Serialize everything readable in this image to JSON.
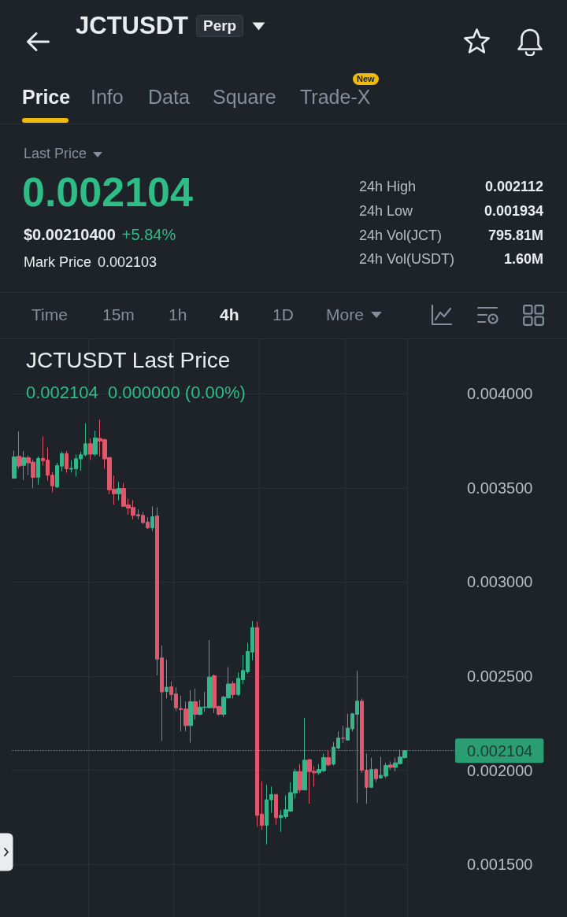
{
  "chart_data": {
    "type": "candlestick",
    "title": "JCTUSDT Last Price",
    "subtitle": "0.002104  0.000000 (0.00%)",
    "annotations": [
      "JCTUSDT",
      "Perp",
      "Price",
      "Info",
      "Data",
      "Square",
      "Trade-X",
      "New",
      "Last Price",
      "0.002104",
      "$0.00210400",
      "+5.84%",
      "Mark Price",
      "0.002103",
      "24h High",
      "0.002112",
      "24h Low",
      "0.001934",
      "24h Vol(JCT)",
      "795.81M",
      "24h Vol(USDT)",
      "1.60M",
      "Time",
      "15m",
      "1h",
      "4h",
      "1D",
      "More"
    ],
    "categories": [
      null,
      null,
      null,
      null,
      null,
      null,
      null,
      null,
      null,
      null,
      null,
      null,
      null,
      null,
      null,
      null,
      null,
      null,
      null,
      null,
      null,
      null,
      null,
      null,
      null,
      null,
      null,
      null,
      null,
      null,
      null,
      null,
      null,
      null,
      null,
      null,
      null,
      null,
      null,
      null,
      null,
      null,
      null,
      null,
      null,
      null,
      null,
      null,
      null,
      null,
      null,
      null,
      null,
      null,
      null,
      null,
      null,
      null,
      null,
      null,
      null,
      null,
      null,
      null,
      null,
      null,
      null,
      null,
      null,
      null,
      null,
      null,
      null,
      null,
      null,
      null,
      null,
      null,
      null,
      null,
      null,
      null,
      null
    ],
    "ohlc": [
      [
        0.003552,
        0.003698,
        0.003548,
        0.003665
      ],
      [
        0.003668,
        0.0038,
        0.003602,
        0.003616
      ],
      [
        0.00362,
        0.003696,
        0.003542,
        0.003661
      ],
      [
        0.003661,
        0.003672,
        0.003567,
        0.003633
      ],
      [
        0.003637,
        0.003651,
        0.0035,
        0.003556
      ],
      [
        0.003557,
        0.003668,
        0.003518,
        0.003657
      ],
      [
        0.003657,
        0.003774,
        0.003619,
        0.003645
      ],
      [
        0.003648,
        0.003714,
        0.003539,
        0.003567
      ],
      [
        0.003567,
        0.003585,
        0.003477,
        0.003511
      ],
      [
        0.003505,
        0.003633,
        0.0035,
        0.003619
      ],
      [
        0.003616,
        0.003693,
        0.003588,
        0.003682
      ],
      [
        0.003682,
        0.003696,
        0.003581,
        0.003602
      ],
      [
        0.0036,
        0.003648,
        0.003581,
        0.003604
      ],
      [
        0.003602,
        0.003676,
        0.00356,
        0.003655
      ],
      [
        0.003654,
        0.003693,
        0.003591,
        0.003676
      ],
      [
        0.003676,
        0.003844,
        0.003668,
        0.003735
      ],
      [
        0.003735,
        0.003763,
        0.003648,
        0.003679
      ],
      [
        0.003679,
        0.003804,
        0.003668,
        0.003766
      ],
      [
        0.003763,
        0.003863,
        0.003668,
        0.003749
      ],
      [
        0.003756,
        0.003763,
        0.003602,
        0.003654
      ],
      [
        0.003662,
        0.003662,
        0.003467,
        0.00349
      ],
      [
        0.003493,
        0.003565,
        0.003411,
        0.003469
      ],
      [
        0.003469,
        0.003532,
        0.003435,
        0.003497
      ],
      [
        0.003497,
        0.003526,
        0.003402,
        0.003402
      ],
      [
        0.00341,
        0.003444,
        0.003358,
        0.003393
      ],
      [
        0.003396,
        0.003435,
        0.003333,
        0.003354
      ],
      [
        0.003358,
        0.003386,
        0.003333,
        0.003351
      ],
      [
        0.003354,
        0.003372,
        0.003309,
        0.003316
      ],
      [
        0.003319,
        0.003344,
        0.003281,
        0.003288
      ],
      [
        0.003288,
        0.003402,
        0.003271,
        0.003347
      ],
      [
        0.003351,
        0.003397,
        0.002504,
        0.00259
      ],
      [
        0.002597,
        0.002663,
        0.002155,
        0.002416
      ],
      [
        0.002418,
        0.002588,
        0.002381,
        0.002441
      ],
      [
        0.002443,
        0.002472,
        0.00237,
        0.002402
      ],
      [
        0.002405,
        0.002441,
        0.002314,
        0.002332
      ],
      [
        0.002328,
        0.002397,
        0.002206,
        0.002322
      ],
      [
        0.002325,
        0.002364,
        0.002206,
        0.002237
      ],
      [
        0.002237,
        0.002425,
        0.002146,
        0.002364
      ],
      [
        0.002364,
        0.002434,
        0.002269,
        0.002297
      ],
      [
        0.002297,
        0.002374,
        0.00229,
        0.002335
      ],
      [
        0.002333,
        0.002416,
        0.002311,
        0.002336
      ],
      [
        0.002332,
        0.002692,
        0.002328,
        0.002495
      ],
      [
        0.002502,
        0.002509,
        0.002304,
        0.002332
      ],
      [
        0.002339,
        0.002342,
        0.00229,
        0.002297
      ],
      [
        0.002297,
        0.002395,
        0.002283,
        0.002388
      ],
      [
        0.002385,
        0.002548,
        0.002381,
        0.002458
      ],
      [
        0.00246,
        0.002474,
        0.002381,
        0.002402
      ],
      [
        0.002402,
        0.00252,
        0.002395,
        0.002488
      ],
      [
        0.002481,
        0.002614,
        0.002458,
        0.00253
      ],
      [
        0.002523,
        0.002677,
        0.002513,
        0.002632
      ],
      [
        0.002628,
        0.002793,
        0.002583,
        0.002758
      ],
      [
        0.002758,
        0.002789,
        0.0017,
        0.00176
      ],
      [
        0.001767,
        0.001941,
        0.001683,
        0.001707
      ],
      [
        0.001707,
        0.001923,
        0.001606,
        0.001843
      ],
      [
        0.001843,
        0.001913,
        0.001773,
        0.001871
      ],
      [
        0.001871,
        0.001871,
        0.001711,
        0.001748
      ],
      [
        0.001748,
        0.001788,
        0.001672,
        0.00176
      ],
      [
        0.001753,
        0.001867,
        0.001742,
        0.00179
      ],
      [
        0.001783,
        0.001937,
        0.001778,
        0.001881
      ],
      [
        0.001878,
        0.002007,
        0.00185,
        0.001993
      ],
      [
        0.001993,
        0.002032,
        0.001881,
        0.001895
      ],
      [
        0.001895,
        0.002279,
        0.001895,
        0.002053
      ],
      [
        0.002056,
        0.00206,
        0.001822,
        0.001993
      ],
      [
        0.001994,
        0.002021,
        0.001913,
        0.001986
      ],
      [
        0.001986,
        0.002032,
        0.001976,
        0.002004
      ],
      [
        0.001997,
        0.002088,
        0.00199,
        0.002067
      ],
      [
        0.002067,
        0.002102,
        0.002021,
        0.002028
      ],
      [
        0.002032,
        0.00215,
        0.002025,
        0.002123
      ],
      [
        0.002118,
        0.002206,
        0.002111,
        0.002171
      ],
      [
        0.002171,
        0.002237,
        0.002144,
        0.002169
      ],
      [
        0.00216,
        0.0023,
        0.002157,
        0.002224
      ],
      [
        0.00222,
        0.002304,
        0.002206,
        0.0023
      ],
      [
        0.002297,
        0.002527,
        0.001825,
        0.002367
      ],
      [
        0.002367,
        0.002381,
        0.001986,
        0.002
      ],
      [
        0.002,
        0.002088,
        0.001822,
        0.001909
      ],
      [
        0.001909,
        0.002067,
        0.001906,
        0.002004
      ],
      [
        0.002004,
        0.002011,
        0.001937,
        0.001955
      ],
      [
        0.001959,
        0.002071,
        0.001955,
        0.001973
      ],
      [
        0.001969,
        0.002039,
        0.001959,
        0.002025
      ],
      [
        0.002028,
        0.002046,
        0.002004,
        0.002015
      ],
      [
        0.002015,
        0.002067,
        0.001994,
        0.002039
      ],
      [
        0.002035,
        0.002109,
        0.002032,
        0.00207
      ],
      [
        0.002067,
        0.002106,
        0.002062,
        0.002104
      ]
    ],
    "ylim": [
      0.00122,
      0.00429
    ],
    "yticks": [
      {
        "value": 0.0015,
        "label": "0.001500"
      },
      {
        "value": 0.002,
        "label": "0.002000"
      },
      {
        "value": 0.0025,
        "label": "0.002500"
      },
      {
        "value": 0.003,
        "label": "0.003000"
      },
      {
        "value": 0.0035,
        "label": "0.003500"
      },
      {
        "value": 0.004,
        "label": "0.004000"
      }
    ],
    "grid": true,
    "tick_labels": "y",
    "ref_lines": [
      {
        "axis": "y",
        "value": 0.002104,
        "label": "0.002104",
        "color": "#2ebd85",
        "line_style": "dotted"
      }
    ]
  }
}
